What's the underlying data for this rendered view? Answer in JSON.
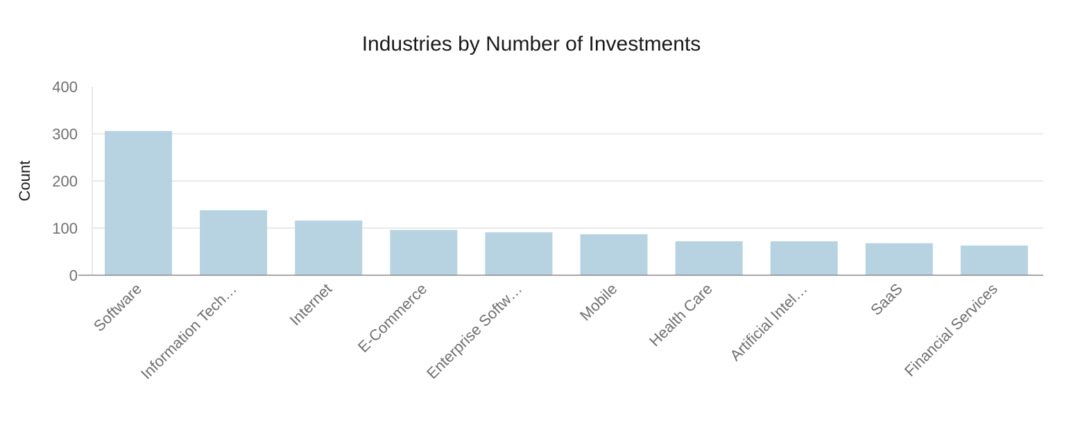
{
  "chart_data": {
    "type": "bar",
    "title": "Industries by Number of Investments",
    "xlabel": "",
    "ylabel": "Count",
    "ylim": [
      0,
      400
    ],
    "yticks": [
      0,
      100,
      200,
      300,
      400
    ],
    "grid": true,
    "bar_color": "#b7d3e1",
    "categories": [
      "Software",
      "Information Tech…",
      "Internet",
      "E-Commerce",
      "Enterprise Softw…",
      "Mobile",
      "Health Care",
      "Artificial Intel…",
      "SaaS",
      "Financial Services"
    ],
    "values": [
      306,
      138,
      116,
      96,
      91,
      87,
      72,
      72,
      68,
      63
    ]
  }
}
